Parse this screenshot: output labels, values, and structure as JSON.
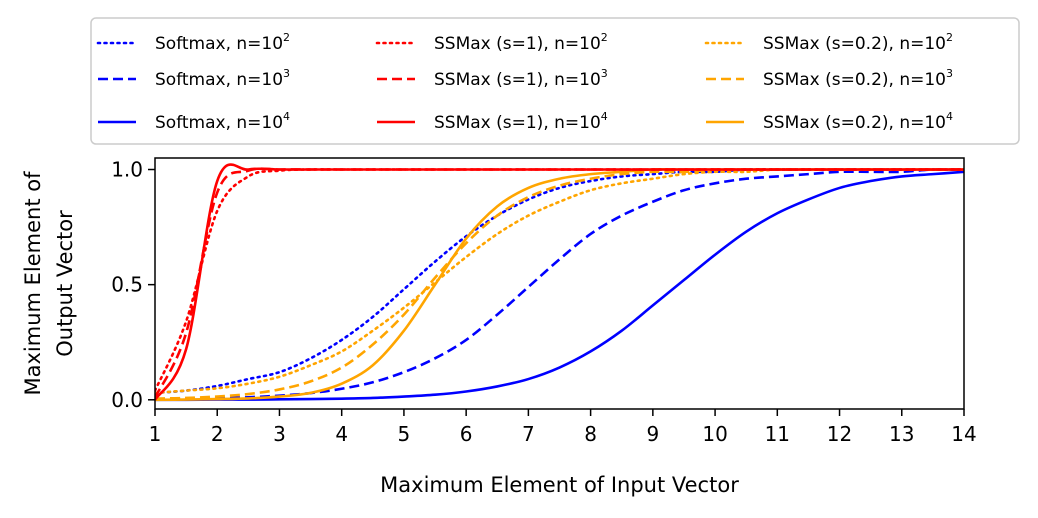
{
  "chart_data": {
    "type": "line",
    "title": "",
    "xlabel": "Maximum Element of Input Vector",
    "ylabel_lines": [
      "Maximum Element of",
      "Output Vector"
    ],
    "xlim": [
      1,
      14
    ],
    "ylim": [
      -0.04,
      1.05
    ],
    "xticks": [
      1,
      2,
      3,
      4,
      5,
      6,
      7,
      8,
      9,
      10,
      11,
      12,
      13,
      14
    ],
    "xtick_labels": [
      "1",
      "2",
      "3",
      "4",
      "5",
      "6",
      "7",
      "8",
      "9",
      "10",
      "11",
      "12",
      "13",
      "14"
    ],
    "yticks": [
      0.0,
      0.5,
      1.0
    ],
    "ytick_labels": [
      "0.0",
      "0.5",
      "1.0"
    ],
    "grid": false,
    "legend_position": "above",
    "legend_columns": 3,
    "x": [
      1.0,
      1.5,
      2.0,
      2.5,
      3.0,
      3.5,
      4.0,
      4.5,
      5.0,
      5.5,
      6.0,
      6.5,
      7.0,
      7.5,
      8.0,
      8.5,
      9.0,
      9.5,
      10.0,
      10.5,
      11.0,
      11.5,
      12.0,
      12.5,
      13.0,
      13.5,
      14.0
    ],
    "series": [
      {
        "name": "Softmax, n=10",
        "exponent": "2",
        "style": "dotted",
        "color": "#0000ff",
        "values": [
          0.03,
          0.04,
          0.06,
          0.09,
          0.12,
          0.18,
          0.26,
          0.36,
          0.48,
          0.6,
          0.71,
          0.8,
          0.87,
          0.92,
          0.95,
          0.97,
          0.98,
          0.99,
          0.99,
          1.0,
          1.0,
          1.0,
          1.0,
          1.0,
          1.0,
          1.0,
          1.0
        ]
      },
      {
        "name": "Softmax, n=10",
        "exponent": "3",
        "style": "dashed",
        "color": "#0000ff",
        "values": [
          0.003,
          0.004,
          0.007,
          0.011,
          0.018,
          0.029,
          0.048,
          0.076,
          0.12,
          0.18,
          0.26,
          0.37,
          0.49,
          0.61,
          0.72,
          0.8,
          0.86,
          0.91,
          0.94,
          0.96,
          0.97,
          0.98,
          0.99,
          0.99,
          0.99,
          1.0,
          1.0
        ]
      },
      {
        "name": "Softmax, n=10",
        "exponent": "4",
        "style": "solid",
        "color": "#0000ff",
        "values": [
          0.0,
          0.0,
          0.001,
          0.001,
          0.002,
          0.003,
          0.005,
          0.008,
          0.014,
          0.022,
          0.036,
          0.058,
          0.09,
          0.14,
          0.21,
          0.3,
          0.41,
          0.52,
          0.63,
          0.73,
          0.81,
          0.87,
          0.92,
          0.95,
          0.97,
          0.98,
          0.99
        ]
      },
      {
        "name": "SSMax (s=1), n=10",
        "exponent": "2",
        "style": "dotted",
        "color": "#ff0000",
        "values": [
          0.04,
          0.34,
          0.82,
          0.97,
          0.995,
          1.0,
          1.0,
          1.0,
          1.0,
          1.0,
          1.0,
          1.0,
          1.0,
          1.0,
          1.0,
          1.0,
          1.0,
          1.0,
          1.0,
          1.0,
          1.0,
          1.0,
          1.0,
          1.0,
          1.0,
          1.0,
          1.0
        ]
      },
      {
        "name": "SSMax (s=1), n=10",
        "exponent": "3",
        "style": "dashed",
        "color": "#ff0000",
        "values": [
          0.01,
          0.29,
          0.9,
          0.995,
          1.0,
          1.0,
          1.0,
          1.0,
          1.0,
          1.0,
          1.0,
          1.0,
          1.0,
          1.0,
          1.0,
          1.0,
          1.0,
          1.0,
          1.0,
          1.0,
          1.0,
          1.0,
          1.0,
          1.0,
          1.0,
          1.0,
          1.0
        ]
      },
      {
        "name": "SSMax (s=1), n=10",
        "exponent": "4",
        "style": "solid",
        "color": "#ff0000",
        "values": [
          0.0,
          0.22,
          0.95,
          1.0,
          1.0,
          1.0,
          1.0,
          1.0,
          1.0,
          1.0,
          1.0,
          1.0,
          1.0,
          1.0,
          1.0,
          1.0,
          1.0,
          1.0,
          1.0,
          1.0,
          1.0,
          1.0,
          1.0,
          1.0,
          1.0,
          1.0,
          1.0
        ]
      },
      {
        "name": "SSMax (s=0.2), n=10",
        "exponent": "2",
        "style": "dotted",
        "color": "#ffa500",
        "values": [
          0.03,
          0.04,
          0.05,
          0.07,
          0.1,
          0.15,
          0.21,
          0.3,
          0.4,
          0.51,
          0.62,
          0.72,
          0.8,
          0.86,
          0.91,
          0.94,
          0.96,
          0.98,
          0.99,
          0.99,
          1.0,
          1.0,
          1.0,
          1.0,
          1.0,
          1.0,
          1.0
        ]
      },
      {
        "name": "SSMax (s=0.2), n=10",
        "exponent": "3",
        "style": "dashed",
        "color": "#ffa500",
        "values": [
          0.005,
          0.008,
          0.014,
          0.025,
          0.045,
          0.08,
          0.14,
          0.24,
          0.37,
          0.53,
          0.68,
          0.8,
          0.88,
          0.93,
          0.96,
          0.98,
          0.99,
          0.99,
          1.0,
          1.0,
          1.0,
          1.0,
          1.0,
          1.0,
          1.0,
          1.0,
          1.0
        ]
      },
      {
        "name": "SSMax (s=0.2), n=10",
        "exponent": "4",
        "style": "solid",
        "color": "#ffa500",
        "values": [
          0.0,
          0.001,
          0.003,
          0.006,
          0.014,
          0.03,
          0.07,
          0.15,
          0.3,
          0.5,
          0.7,
          0.84,
          0.92,
          0.96,
          0.98,
          0.99,
          1.0,
          1.0,
          1.0,
          1.0,
          1.0,
          1.0,
          1.0,
          1.0,
          1.0,
          1.0,
          1.0
        ]
      }
    ]
  }
}
